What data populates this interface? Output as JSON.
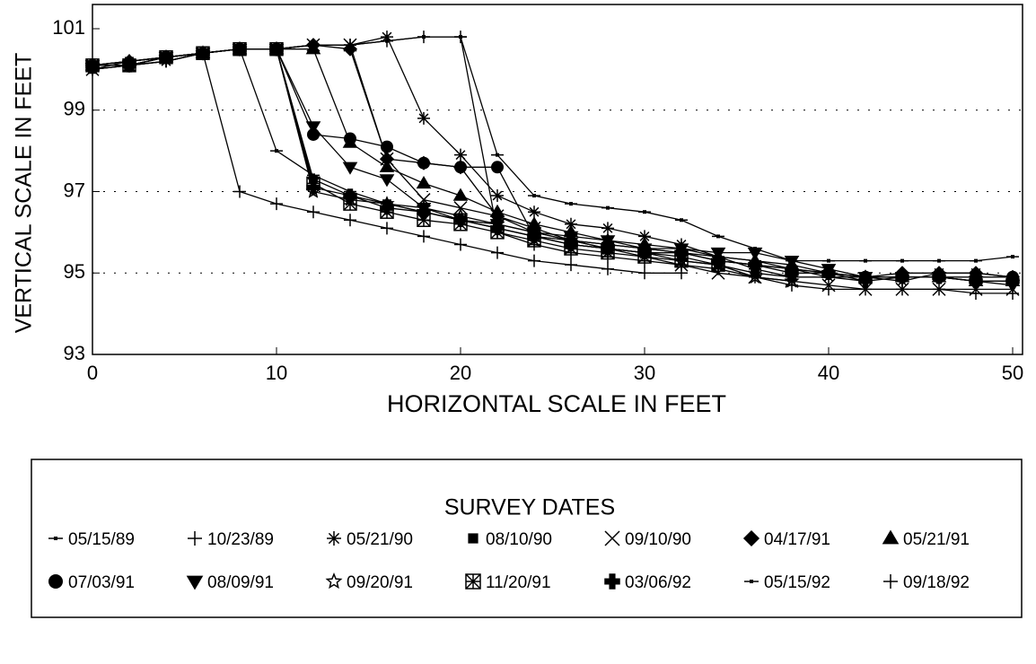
{
  "chart_data": {
    "type": "line",
    "xlabel": "HORIZONTAL SCALE IN FEET",
    "ylabel": "VERTICAL SCALE IN FEET",
    "legend_title": "SURVEY DATES",
    "x": [
      0,
      2,
      4,
      6,
      8,
      10,
      12,
      14,
      16,
      18,
      20,
      22,
      24,
      26,
      28,
      30,
      32,
      34,
      36,
      38,
      40,
      42,
      44,
      46,
      48,
      50
    ],
    "xlim": [
      0,
      50
    ],
    "xticks": [
      0,
      10,
      20,
      30,
      40,
      50
    ],
    "ylim": [
      93,
      101
    ],
    "yticks": [
      93,
      95,
      97,
      99,
      101
    ],
    "grid": true,
    "legend": "bottom",
    "series": [
      {
        "name": "05/15/89",
        "color": "#000",
        "marker": "dash",
        "values": [
          100.1,
          100.2,
          100.3,
          100.4,
          100.5,
          100.5,
          100.6,
          100.6,
          100.7,
          100.8,
          100.8,
          97.9,
          96.9,
          96.7,
          96.6,
          96.5,
          96.3,
          95.9,
          95.6,
          95.3,
          95.3,
          95.3,
          95.3,
          95.3,
          95.3,
          95.4
        ]
      },
      {
        "name": "10/23/89",
        "color": "#000",
        "marker": "plus",
        "values": [
          100.0,
          100.1,
          100.2,
          100.4,
          97.0,
          96.7,
          96.5,
          96.3,
          96.1,
          95.9,
          95.7,
          95.5,
          95.3,
          95.2,
          95.1,
          95.0,
          95.0,
          null,
          null,
          null,
          null,
          null,
          null,
          null,
          null,
          null
        ]
      },
      {
        "name": "05/21/90",
        "color": "#000",
        "marker": "asterisk",
        "values": [
          100.0,
          100.1,
          100.2,
          100.4,
          100.5,
          100.5,
          100.6,
          100.6,
          100.8,
          98.8,
          97.9,
          96.9,
          96.5,
          96.2,
          96.1,
          95.9,
          95.7,
          95.4,
          95.1,
          94.9,
          94.9,
          94.9,
          94.8,
          95.0,
          95.0,
          94.9
        ]
      },
      {
        "name": "08/10/90",
        "color": "#000",
        "marker": "square",
        "values": [
          100.0,
          100.2,
          100.3,
          100.4,
          100.5,
          100.5,
          97.3,
          96.9,
          96.7,
          96.5,
          96.3,
          96.1,
          95.9,
          95.7,
          95.6,
          95.5,
          95.4,
          95.2,
          95.0,
          94.9,
          null,
          null,
          null,
          null,
          null,
          null
        ]
      },
      {
        "name": "09/10/90",
        "color": "#000",
        "marker": "x",
        "values": [
          100.0,
          100.1,
          100.3,
          100.4,
          100.5,
          100.5,
          100.6,
          100.6,
          97.8,
          96.8,
          96.6,
          96.4,
          96.1,
          95.8,
          95.6,
          95.4,
          95.2,
          95.0,
          94.9,
          94.8,
          94.7,
          94.6,
          94.6,
          94.6,
          94.6,
          94.6
        ]
      },
      {
        "name": "04/17/91",
        "color": "#000",
        "marker": "diamond",
        "values": [
          100.1,
          100.2,
          100.3,
          100.4,
          100.5,
          100.5,
          100.6,
          100.5,
          97.8,
          97.7,
          97.6,
          96.4,
          96.0,
          95.8,
          95.7,
          95.6,
          95.5,
          95.3,
          95.2,
          95.1,
          95.0,
          94.9,
          95.0,
          95.0,
          95.0,
          94.9
        ]
      },
      {
        "name": "05/21/91",
        "color": "#000",
        "marker": "triangle",
        "values": [
          100.1,
          100.2,
          100.3,
          100.4,
          100.5,
          100.5,
          100.5,
          98.2,
          97.6,
          97.2,
          96.9,
          96.5,
          96.2,
          96.0,
          95.8,
          95.7,
          95.6,
          95.4,
          95.3,
          95.2,
          95.0,
          94.9,
          94.9,
          94.9,
          94.8,
          94.8
        ]
      },
      {
        "name": "07/03/91",
        "color": "#000",
        "marker": "circle",
        "values": [
          100.1,
          100.1,
          100.3,
          100.4,
          100.5,
          100.5,
          98.4,
          98.3,
          98.1,
          97.7,
          97.6,
          97.6,
          95.9,
          95.7,
          95.6,
          95.5,
          95.5,
          95.3,
          95.2,
          95.1,
          95.0,
          94.9,
          94.9,
          94.9,
          94.9,
          94.9
        ]
      },
      {
        "name": "08/09/91",
        "color": "#000",
        "marker": "triangle-down",
        "values": [
          100.1,
          100.1,
          100.3,
          100.4,
          100.5,
          100.5,
          98.6,
          97.6,
          97.3,
          96.6,
          96.3,
          96.2,
          96.0,
          95.9,
          95.8,
          95.6,
          95.6,
          95.5,
          95.5,
          95.3,
          95.1,
          94.9,
          94.9,
          94.9,
          94.8,
          94.7
        ]
      },
      {
        "name": "09/20/91",
        "color": "#000",
        "marker": "star",
        "values": [
          100.1,
          100.1,
          100.3,
          100.4,
          100.5,
          100.5,
          97.0,
          96.8,
          96.7,
          96.6,
          96.4,
          96.2,
          96.0,
          95.8,
          95.6,
          95.5,
          95.3,
          95.2,
          94.9,
          94.8,
          null,
          null,
          null,
          null,
          null,
          null
        ]
      },
      {
        "name": "11/20/91",
        "color": "#000",
        "marker": "boxx",
        "values": [
          100.1,
          100.1,
          100.3,
          100.4,
          100.5,
          100.5,
          97.2,
          96.7,
          96.5,
          96.3,
          96.2,
          96.0,
          95.8,
          95.6,
          95.5,
          95.4,
          95.3,
          95.2,
          null,
          null,
          null,
          null,
          null,
          null,
          null,
          null
        ]
      },
      {
        "name": "03/06/92",
        "color": "#000",
        "marker": "cross",
        "values": [
          100.1,
          100.1,
          100.3,
          100.4,
          100.5,
          100.5,
          97.1,
          96.9,
          96.6,
          96.5,
          96.3,
          96.1,
          95.9,
          95.7,
          95.6,
          95.5,
          95.5,
          95.3,
          95.2,
          95.0,
          95.0,
          94.8,
          94.9,
          94.9,
          94.8,
          94.8
        ]
      },
      {
        "name": "05/15/92",
        "color": "#000",
        "marker": "dash",
        "values": [
          100.1,
          100.2,
          100.3,
          100.4,
          100.5,
          98.0,
          97.4,
          97.0,
          96.7,
          96.5,
          96.3,
          96.1,
          95.9,
          95.8,
          95.7,
          95.6,
          95.5,
          95.4,
          95.3,
          95.1,
          94.9,
          94.8,
          null,
          null,
          null,
          null
        ]
      },
      {
        "name": "09/18/92",
        "color": "#000",
        "marker": "plus",
        "values": [
          100.1,
          100.1,
          100.2,
          100.4,
          100.5,
          100.5,
          100.6,
          100.6,
          100.7,
          100.8,
          100.8,
          96.0,
          95.7,
          95.5,
          95.4,
          95.3,
          95.2,
          95.1,
          94.9,
          94.7,
          94.6,
          94.6,
          94.6,
          94.6,
          94.5,
          94.5
        ]
      }
    ]
  }
}
